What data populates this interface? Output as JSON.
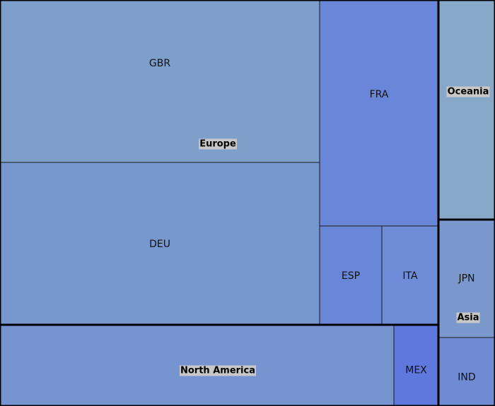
{
  "chart_data": {
    "type": "treemap",
    "title": "",
    "groups": [
      {
        "name": "Europe",
        "leaves": [
          {
            "name": "GBR",
            "value": 104,
            "color": "#7f9fcb"
          },
          {
            "name": "DEU",
            "value": 103,
            "color": "#7798cf"
          },
          {
            "name": "FRA",
            "value": 54,
            "color": "#6a86d9"
          },
          {
            "name": "ESP",
            "value": 40,
            "color": "#6a86d6"
          },
          {
            "name": "ITA",
            "value": 36,
            "color": "#6f8cd8"
          }
        ]
      },
      {
        "name": "North America",
        "leaves": [
          {
            "name": "",
            "value": 64,
            "color": "#7695d0"
          },
          {
            "name": "MEX",
            "value": 8,
            "color": "#5f78dd"
          }
        ]
      },
      {
        "name": "Oceania",
        "leaves": [
          {
            "name": "",
            "value": 25,
            "color": "#88a8ca"
          }
        ]
      },
      {
        "name": "Asia",
        "leaves": [
          {
            "name": "JPN",
            "value": 13,
            "color": "#7a98cc"
          },
          {
            "name": "IND",
            "value": 8,
            "color": "#6e8bd3"
          }
        ]
      }
    ]
  }
}
